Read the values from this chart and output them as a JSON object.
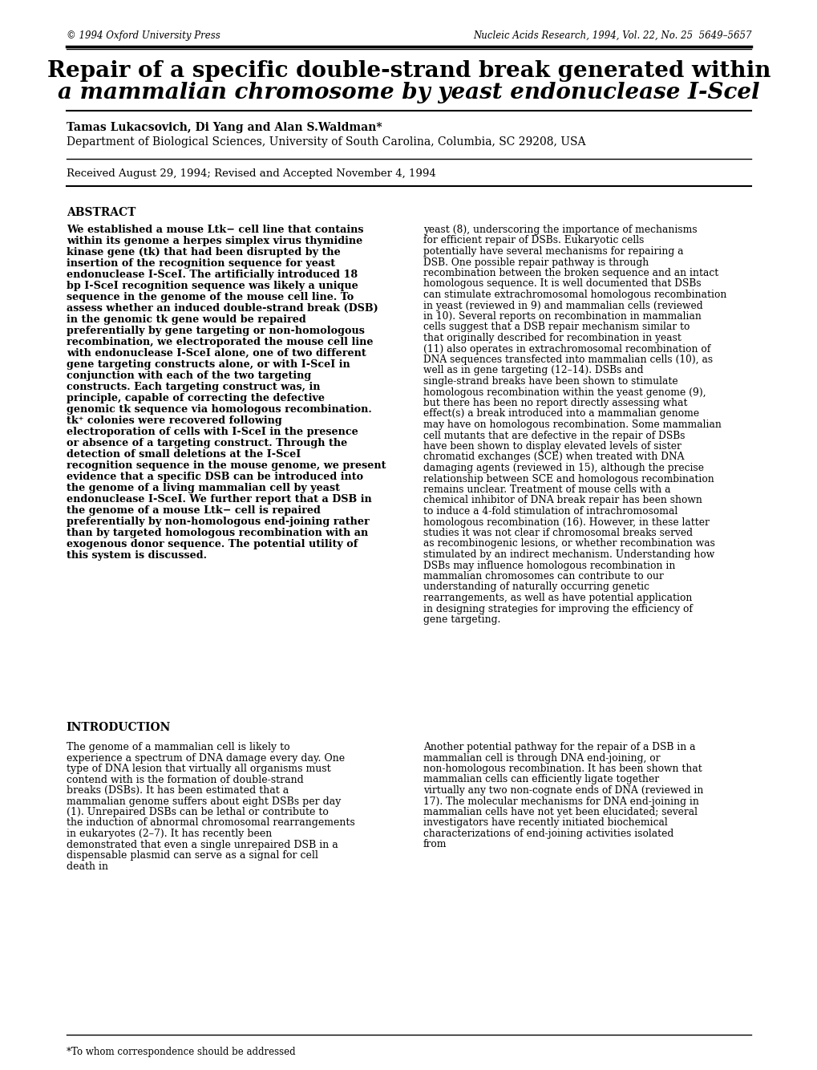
{
  "background_color": "#ffffff",
  "header_left": "© 1994 Oxford University Press",
  "header_right": "Nucleic Acids Research, 1994, Vol. 22, No. 25  5649–5657",
  "title_line1": "Repair of a specific double-strand break generated within",
  "title_line2": "a mammalian chromosome by yeast endonuclease I-Scel",
  "authors": "Tamas Lukacsovich, Di Yang and Alan S.Waldman*",
  "affiliation": "Department of Biological Sciences, University of South Carolina, Columbia, SC 29208, USA",
  "received": "Received August 29, 1994; Revised and Accepted November 4, 1994",
  "abstract_header": "ABSTRACT",
  "abstract_left": "We established a mouse Ltk− cell line that contains within its genome a herpes simplex virus thymidine kinase gene (tk) that had been disrupted by the insertion of the recognition sequence for yeast endonuclease I-SceI. The artificially introduced 18 bp I-SceI recognition sequence was likely a unique sequence in the genome of the mouse cell line. To assess whether an induced double-strand break (DSB) in the genomic tk gene would be repaired preferentially by gene targeting or non-homologous recombination, we electroporated the mouse cell line with endonuclease I-SceI alone, one of two different gene targeting constructs alone, or with I-SceI in conjunction with each of the two targeting constructs. Each targeting construct was, in principle, capable of correcting the defective genomic tk sequence via homologous recombination. tk⁺ colonies were recovered following electroporation of cells with I-SceI in the presence or absence of a targeting construct. Through the detection of small deletions at the I-SceI recognition sequence in the mouse genome, we present evidence that a specific DSB can be introduced into the genome of a living mammalian cell by yeast endonuclease I-SceI. We further report that a DSB in the genome of a mouse Ltk− cell is repaired preferentially by non-homologous end-joining rather than by targeted homologous recombination with an exogenous donor sequence. The potential utility of this system is discussed.",
  "abstract_right": "yeast (8), underscoring the importance of mechanisms for efficient repair of DSBs.\n    Eukaryotic cells potentially have several mechanisms for repairing a DSB. One possible repair pathway is through recombination between the broken sequence and an intact homologous sequence. It is well documented that DSBs can stimulate extrachromosomal homologous recombination in yeast (reviewed in 9) and mammalian cells (reviewed in 10). Several reports on recombination in mammalian cells suggest that a DSB repair mechanism similar to that originally described for recombination in yeast (11) also operates in extrachromosomal recombination of DNA sequences transfected into mammalian cells (10), as well as in gene targeting (12–14). DSBs and single-strand breaks have been shown to stimulate homologous recombination within the yeast genome (9), but there has been no report directly assessing what effect(s) a break introduced into a mammalian genome may have on homologous recombination. Some mammalian cell mutants that are defective in the repair of DSBs have been shown to display elevated levels of sister chromatid exchanges (SCE) when treated with DNA damaging agents (reviewed in 15), although the precise relationship between SCE and homologous recombination remains unclear. Treatment of mouse cells with a chemical inhibitor of DNA break repair has been shown to induce a 4-fold stimulation of intrachromosomal homologous recombination (16). However, in these latter studies it was not clear if chromosomal breaks served as recombinogenic lesions, or whether recombination was stimulated by an indirect mechanism. Understanding how DSBs may influence homologous recombination in mammalian chromosomes can contribute to our understanding of naturally occurring genetic rearrangements, as well as have potential application in designing strategies for improving the efficiency of gene targeting.",
  "intro_header": "INTRODUCTION",
  "intro_text": "The genome of a mammalian cell is likely to experience a spectrum of DNA damage every day. One type of DNA lesion that virtually all organisms must contend with is the formation of double-strand breaks (DSBs). It has been estimated that a mammalian genome suffers about eight DSBs per day (1). Unrepaired DSBs can be lethal or contribute to the induction of abnormal chromosomal rearrangements in eukaryotes (2–7). It has recently been demonstrated that even a single unrepaired DSB in a dispensable plasmid can serve as a signal for cell death in",
  "intro_right": "Another potential pathway for the repair of a DSB in a mammalian cell is through DNA end-joining, or non-homologous recombination. It has been shown that mammalian cells can efficiently ligate together virtually any two non-cognate ends of DNA (reviewed in 17). The molecular mechanisms for DNA end-joining in mammalian cells have not yet been elucidated; several investigators have recently initiated biochemical characterizations of end-joining activities isolated from",
  "footnote": "*To whom correspondence should be addressed"
}
